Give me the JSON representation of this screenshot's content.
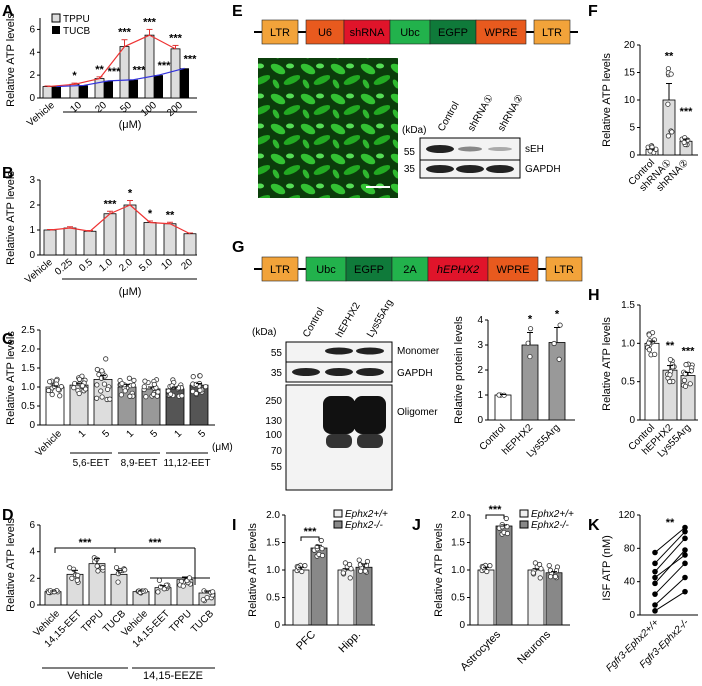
{
  "panels": {
    "A": {
      "label": "A",
      "ylabel": "Relative ATP levels",
      "unit": "(μM)",
      "x": [
        "Vehicle",
        "10",
        "20",
        "50",
        "100",
        "200"
      ],
      "yticks": [
        "0",
        "2",
        "4",
        "6"
      ],
      "legend": [
        "TPPU",
        "TUCB"
      ],
      "stars_tppu": [
        "",
        "*",
        "**",
        "***",
        "***",
        "***"
      ],
      "stars_tucb": [
        "",
        "",
        "***",
        "***",
        "***",
        "***"
      ]
    },
    "B": {
      "label": "B",
      "ylabel": "Relative ATP levels",
      "unit": "(μM)",
      "x": [
        "Vehicle",
        "0.25",
        "0.5",
        "1.0",
        "2.0",
        "5.0",
        "10",
        "20"
      ],
      "yticks": [
        "0",
        "1",
        "2",
        "3"
      ],
      "stars": [
        "",
        "",
        "",
        "***",
        "*",
        "*",
        "**",
        ""
      ]
    },
    "C": {
      "label": "C",
      "ylabel": "Relative ATP levels",
      "yticks": [
        "0",
        "0.5",
        "1.0",
        "1.5",
        "2.0",
        "2.5"
      ],
      "x": [
        "Vehicle",
        "1",
        "5",
        "1",
        "5",
        "1",
        "5"
      ],
      "unit": "(μM)",
      "groups": [
        "5,6-EET",
        "8,9-EET",
        "11,12-EET"
      ]
    },
    "D": {
      "label": "D",
      "ylabel": "Relative ATP levels",
      "yticks": [
        "0",
        "2",
        "4",
        "6"
      ],
      "x": [
        "Vehicle",
        "14,15-EET",
        "TPPU",
        "TUCB",
        "Vehicle",
        "14,15-EET",
        "TPPU",
        "TUCB"
      ],
      "groups": [
        "Vehicle",
        "14,15-EEZE"
      ],
      "stars": [
        "***",
        "***"
      ]
    },
    "E": {
      "label": "E",
      "construct": [
        "LTR",
        "U6",
        "shRNA",
        "Ubc",
        "EGFP",
        "WPRE",
        "LTR"
      ],
      "kda": "(kDa)",
      "mw": [
        "55",
        "35"
      ],
      "lanes": [
        "Control",
        "shRNA①",
        "shRNA②"
      ],
      "bands": [
        "sEH",
        "GAPDH"
      ]
    },
    "F": {
      "label": "F",
      "ylabel": "Relative ATP levels",
      "yticks": [
        "0",
        "5",
        "10",
        "15",
        "20"
      ],
      "x": [
        "Control",
        "shRNA①",
        "shRNA②"
      ],
      "stars": [
        "",
        "**",
        "***"
      ]
    },
    "G": {
      "label": "G",
      "construct": [
        "LTR",
        "Ubc",
        "EGFP",
        "2A",
        "hEPHX2",
        "WPRE",
        "LTR"
      ],
      "kda": "(kDa)",
      "mw_top": [
        "55",
        "35"
      ],
      "mw_bot": [
        "250",
        "130",
        "100",
        "70",
        "55"
      ],
      "lanes": [
        "Control",
        "hEPHX2",
        "Lys55Arg"
      ],
      "bands": [
        "Monomer",
        "GAPDH",
        "Oligomer"
      ],
      "bar_ylabel": "Relative protein levels",
      "bar_yticks": [
        "0",
        "1",
        "2",
        "3",
        "4"
      ],
      "bar_x": [
        "Control",
        "hEPHX2",
        "Lys55Arg"
      ],
      "bar_stars": [
        "",
        "*",
        "*"
      ]
    },
    "H": {
      "label": "H",
      "ylabel": "Relative ATP levels",
      "yticks": [
        "0",
        "0.5",
        "1.0",
        "1.5"
      ],
      "x": [
        "Control",
        "hEPHX2",
        "Lys55Arg"
      ],
      "stars": [
        "",
        "**",
        "***"
      ]
    },
    "I": {
      "label": "I",
      "ylabel": "Relative ATP levels",
      "yticks": [
        "0",
        "0.5",
        "1.0",
        "1.5",
        "2.0"
      ],
      "x": [
        "PFC",
        "Hipp."
      ],
      "legend": [
        "Ephx2+/+",
        "Ephx2-/-"
      ],
      "stars": [
        "***"
      ]
    },
    "J": {
      "label": "J",
      "ylabel": "Relative ATP levels",
      "yticks": [
        "0",
        "0.5",
        "1.0",
        "1.5",
        "2.0"
      ],
      "x": [
        "Astrocytes",
        "Neurons"
      ],
      "legend": [
        "Ephx2+/+",
        "Ephx2-/-"
      ],
      "stars": [
        "***"
      ]
    },
    "K": {
      "label": "K",
      "ylabel": "ISF ATP (nM)",
      "yticks": [
        "0",
        "40",
        "80",
        "120"
      ],
      "x": [
        "Fgfr3-Ephx2+/+",
        "Fgfr3-Ephx2-/-"
      ],
      "stars": [
        "**"
      ]
    }
  },
  "chart_data": [
    {
      "type": "bar",
      "panel": "A",
      "categories": [
        "Vehicle",
        "10",
        "20",
        "50",
        "100",
        "200"
      ],
      "ylim": [
        0,
        7
      ],
      "series": [
        {
          "name": "TPPU",
          "values": [
            1.0,
            1.2,
            1.7,
            4.5,
            5.5,
            4.3
          ],
          "err": [
            0.05,
            0.1,
            0.15,
            0.6,
            0.5,
            0.3
          ]
        },
        {
          "name": "TUCB",
          "values": [
            1.0,
            1.1,
            1.5,
            1.6,
            2.0,
            2.6
          ],
          "err": [
            0.05,
            0.05,
            0.1,
            0.1,
            0.1,
            0.1
          ]
        }
      ]
    },
    {
      "type": "bar",
      "panel": "B",
      "categories": [
        "Vehicle",
        "0.25",
        "0.5",
        "1.0",
        "2.0",
        "5.0",
        "10",
        "20"
      ],
      "ylim": [
        0,
        3
      ],
      "values": [
        1.0,
        1.08,
        0.95,
        1.65,
        2.0,
        1.3,
        1.25,
        0.85
      ],
      "err": [
        0.02,
        0.05,
        0.03,
        0.1,
        0.18,
        0.06,
        0.06,
        0.03
      ]
    },
    {
      "type": "bar",
      "panel": "C",
      "categories": [
        "Vehicle",
        "1",
        "5",
        "1",
        "5",
        "1",
        "5"
      ],
      "ylim": [
        0,
        2.5
      ],
      "values": [
        1.0,
        1.05,
        1.2,
        1.0,
        0.95,
        0.95,
        1.05
      ],
      "err": [
        0.03,
        0.05,
        0.1,
        0.07,
        0.05,
        0.05,
        0.04
      ]
    },
    {
      "type": "bar",
      "panel": "D",
      "categories": [
        "Vehicle",
        "14,15-EET",
        "TPPU",
        "TUCB",
        "Vehicle",
        "14,15-EET",
        "TPPU",
        "TUCB"
      ],
      "ylim": [
        0,
        6
      ],
      "values": [
        1.0,
        2.3,
        3.1,
        2.3,
        1.0,
        1.3,
        1.9,
        0.9
      ],
      "err": [
        0.05,
        0.3,
        0.4,
        0.3,
        0.05,
        0.15,
        0.2,
        0.15
      ]
    },
    {
      "type": "bar",
      "panel": "F",
      "categories": [
        "Control",
        "shRNA①",
        "shRNA②"
      ],
      "ylim": [
        0,
        20
      ],
      "values": [
        1.0,
        10.0,
        2.5
      ],
      "err": [
        0.1,
        3.0,
        0.4
      ]
    },
    {
      "type": "bar",
      "panel": "G",
      "categories": [
        "Control",
        "hEPHX2",
        "Lys55Arg"
      ],
      "ylim": [
        0,
        4
      ],
      "values": [
        1.0,
        3.0,
        3.1
      ],
      "err": [
        0.02,
        0.5,
        0.6
      ]
    },
    {
      "type": "bar",
      "panel": "H",
      "categories": [
        "Control",
        "hEPHX2",
        "Lys55Arg"
      ],
      "ylim": [
        0,
        1.5
      ],
      "values": [
        1.0,
        0.65,
        0.58
      ],
      "err": [
        0.03,
        0.06,
        0.04
      ]
    },
    {
      "type": "bar",
      "panel": "I",
      "categories": [
        "PFC",
        "Hipp."
      ],
      "ylim": [
        0,
        2
      ],
      "series": [
        {
          "name": "Ephx2+/+",
          "values": [
            1.0,
            1.0
          ],
          "err": [
            0.05,
            0.02
          ]
        },
        {
          "name": "Ephx2-/-",
          "values": [
            1.4,
            1.05
          ],
          "err": [
            0.05,
            0.06
          ]
        }
      ]
    },
    {
      "type": "bar",
      "panel": "J",
      "categories": [
        "Astrocytes",
        "Neurons"
      ],
      "ylim": [
        0,
        2
      ],
      "series": [
        {
          "name": "Ephx2+/+",
          "values": [
            1.0,
            1.0
          ],
          "err": [
            0.05,
            0.02
          ]
        },
        {
          "name": "Ephx2-/-",
          "values": [
            1.8,
            0.95
          ],
          "err": [
            0.02,
            0.02
          ]
        }
      ]
    },
    {
      "type": "line",
      "panel": "K",
      "categories": [
        "Fgfr3-Ephx2+/+",
        "Fgfr3-Ephx2-/-"
      ],
      "ylim": [
        0,
        120
      ],
      "pairs": [
        [
          5,
          28
        ],
        [
          12,
          45
        ],
        [
          25,
          62
        ],
        [
          38,
          78
        ],
        [
          45,
          72
        ],
        [
          52,
          92
        ],
        [
          62,
          100
        ],
        [
          75,
          105
        ]
      ]
    }
  ]
}
